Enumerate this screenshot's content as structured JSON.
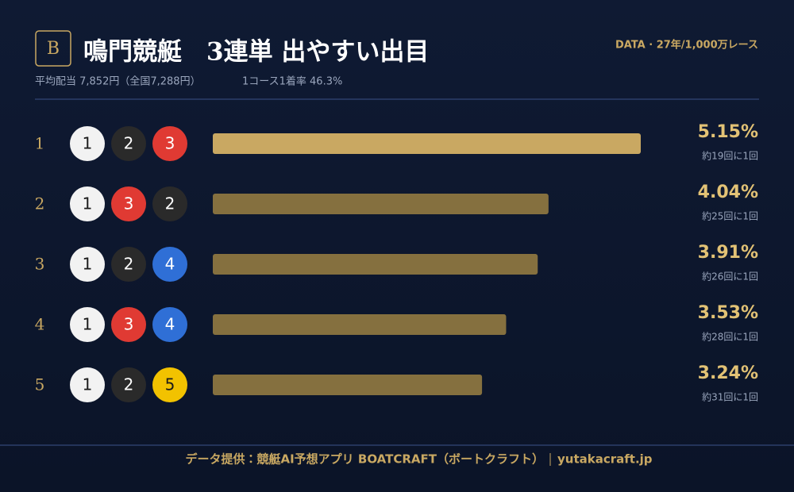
{
  "chart_data": {
    "type": "bar",
    "orientation": "horizontal",
    "badge": "B",
    "title": "鳴門競艇　3連単 出やすい出目",
    "subtitle": "平均配当 7,852円（全国7,288円）",
    "subtitle_2": "1コース1着率 46.3%",
    "source_note": "DATA · 27年/1,000万レース",
    "categories": [
      "1",
      "2",
      "3",
      "4",
      "5"
    ],
    "combos": [
      [
        1,
        2,
        3
      ],
      [
        1,
        3,
        2
      ],
      [
        1,
        2,
        4
      ],
      [
        1,
        3,
        4
      ],
      [
        1,
        2,
        5
      ]
    ],
    "values": [
      5.15,
      4.04,
      3.91,
      3.53,
      3.24
    ],
    "value_labels": [
      "5.15%",
      "4.04%",
      "3.91%",
      "3.53%",
      "3.24%"
    ],
    "frequency_labels": [
      "約19回に1回",
      "約25回に1回",
      "約26回に1回",
      "約28回に1回",
      "約31回に1回"
    ],
    "highlight_color": "#c9a862",
    "color": "#85703f",
    "boat_colors": [
      "#f2f2f2",
      "#2a2a2a",
      "#e03a33",
      "#2f6fd6",
      "#f2c200"
    ],
    "boat_text_colors": [
      "#1a1a1a",
      "#ffffff",
      "#ffffff",
      "#ffffff",
      "#1a1a1a"
    ],
    "footer": "データ提供：競艇AI予想アプリ BOATCRAFT（ボートクラフト）",
    "footer_url": "yutakacraft.jp"
  }
}
